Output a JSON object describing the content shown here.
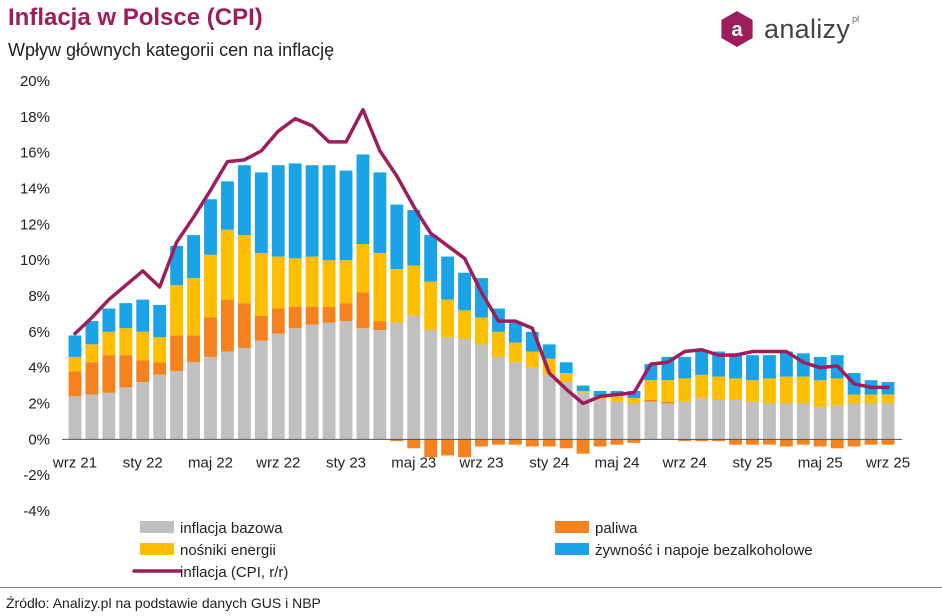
{
  "header": {
    "title": "Inflacja w Polsce (CPI)",
    "subtitle": "Wpływ głównych kategorii cen na inflację"
  },
  "brand": {
    "name": "analizy",
    "suffix": "pl",
    "logo_letter": "a",
    "color": "#9c1e5c"
  },
  "footer": {
    "source": "Źródło: Analizy.pl na podstawie danych GUS i NBP"
  },
  "chart_data": {
    "type": "bar",
    "stacked": true,
    "title": "Inflacja w Polsce (CPI)",
    "subtitle": "Wpływ głównych kategorii cen na inflację",
    "ylim": [
      -4,
      20
    ],
    "yticks": [
      -4,
      -2,
      0,
      2,
      4,
      6,
      8,
      10,
      12,
      14,
      16,
      18,
      20
    ],
    "ytick_labels": [
      "-4%",
      "-2%",
      "0%",
      "2%",
      "4%",
      "6%",
      "8%",
      "10%",
      "12%",
      "14%",
      "16%",
      "18%",
      "20%"
    ],
    "grid": false,
    "legend_position": "bottom",
    "categories": [
      "2021-09",
      "2021-10",
      "2021-11",
      "2021-12",
      "2022-01",
      "2022-02",
      "2022-03",
      "2022-04",
      "2022-05",
      "2022-06",
      "2022-07",
      "2022-08",
      "2022-09",
      "2022-10",
      "2022-11",
      "2022-12",
      "2023-01",
      "2023-02",
      "2023-03",
      "2023-04",
      "2023-05",
      "2023-06",
      "2023-07",
      "2023-08",
      "2023-09",
      "2023-10",
      "2023-11",
      "2023-12",
      "2024-01",
      "2024-02",
      "2024-03",
      "2024-04",
      "2024-05",
      "2024-06",
      "2024-07",
      "2024-08",
      "2024-09",
      "2024-10",
      "2024-11",
      "2024-12",
      "2025-01",
      "2025-02",
      "2025-03",
      "2025-04",
      "2025-05",
      "2025-06",
      "2025-07",
      "2025-08",
      "2025-09"
    ],
    "x_tick_labels": [
      {
        "index": 0,
        "label": "wrz 21"
      },
      {
        "index": 4,
        "label": "sty 22"
      },
      {
        "index": 8,
        "label": "maj 22"
      },
      {
        "index": 12,
        "label": "wrz 22"
      },
      {
        "index": 16,
        "label": "sty 23"
      },
      {
        "index": 20,
        "label": "maj 23"
      },
      {
        "index": 24,
        "label": "wrz 23"
      },
      {
        "index": 28,
        "label": "sty 24"
      },
      {
        "index": 32,
        "label": "maj 24"
      },
      {
        "index": 36,
        "label": "wrz 24"
      },
      {
        "index": 40,
        "label": "sty 25"
      },
      {
        "index": 44,
        "label": "maj 25"
      },
      {
        "index": 48,
        "label": "wrz 25"
      }
    ],
    "series": [
      {
        "name": "inflacja bazowa",
        "color": "#c0c0c0",
        "kind": "bar",
        "values": [
          2.4,
          2.5,
          2.6,
          2.9,
          3.2,
          3.6,
          3.8,
          4.3,
          4.6,
          4.9,
          5.1,
          5.5,
          5.9,
          6.2,
          6.4,
          6.5,
          6.6,
          6.2,
          6.1,
          6.5,
          6.9,
          6.1,
          5.7,
          5.6,
          5.3,
          4.6,
          4.3,
          4.0,
          3.6,
          3.2,
          2.6,
          2.2,
          2.1,
          2.0,
          2.1,
          2.0,
          2.1,
          2.3,
          2.2,
          2.2,
          2.1,
          2.0,
          2.0,
          2.0,
          1.8,
          1.9,
          2.0,
          2.0,
          2.0
        ]
      },
      {
        "name": "paliwa",
        "color": "#f5821f",
        "kind": "bar",
        "values": [
          1.4,
          1.8,
          2.1,
          1.8,
          1.2,
          0.7,
          2.0,
          1.5,
          2.2,
          2.9,
          2.5,
          1.4,
          1.4,
          1.2,
          1.0,
          0.9,
          1.0,
          2.0,
          0.5,
          -0.1,
          -0.5,
          -1.0,
          -0.9,
          -1.0,
          -0.4,
          -0.3,
          -0.3,
          -0.4,
          -0.4,
          -0.5,
          -0.8,
          -0.4,
          -0.3,
          -0.2,
          0.1,
          0.1,
          -0.1,
          -0.1,
          -0.1,
          -0.3,
          -0.3,
          -0.3,
          -0.4,
          -0.3,
          -0.4,
          -0.5,
          -0.4,
          -0.3,
          -0.3
        ]
      },
      {
        "name": "nośniki energii",
        "color": "#ffbe00",
        "kind": "bar",
        "values": [
          0.8,
          1.0,
          1.3,
          1.5,
          1.6,
          1.4,
          2.8,
          3.2,
          3.5,
          3.9,
          3.8,
          3.5,
          2.9,
          2.7,
          2.8,
          2.6,
          2.4,
          2.7,
          3.8,
          3.0,
          2.8,
          2.7,
          2.1,
          1.6,
          1.5,
          1.4,
          1.1,
          0.9,
          0.9,
          0.5,
          0.1,
          0.2,
          0.3,
          0.3,
          1.1,
          1.2,
          1.3,
          1.3,
          1.3,
          1.2,
          1.2,
          1.4,
          1.5,
          1.5,
          1.5,
          1.5,
          0.5,
          0.5,
          0.5
        ]
      },
      {
        "name": "żywność i napoje bezalkoholowe",
        "color": "#1ba3e8",
        "kind": "bar",
        "values": [
          1.2,
          1.3,
          1.3,
          1.4,
          1.8,
          1.8,
          2.2,
          2.4,
          3.1,
          2.7,
          3.9,
          4.5,
          5.1,
          5.3,
          5.1,
          5.3,
          5.0,
          5.0,
          4.5,
          3.6,
          3.1,
          2.6,
          2.4,
          2.1,
          2.2,
          1.3,
          1.1,
          1.1,
          0.8,
          0.6,
          0.3,
          0.3,
          0.3,
          0.4,
          0.9,
          1.3,
          1.2,
          1.4,
          1.4,
          1.4,
          1.4,
          1.3,
          1.4,
          1.3,
          1.3,
          1.3,
          1.2,
          0.8,
          0.7
        ]
      },
      {
        "name": "inflacja (CPI, r/r)",
        "color": "#9c1e5c",
        "kind": "line",
        "values": [
          5.9,
          6.8,
          7.8,
          8.6,
          9.4,
          8.5,
          11.0,
          12.4,
          13.9,
          15.5,
          15.6,
          16.1,
          17.2,
          17.9,
          17.5,
          16.6,
          16.6,
          18.4,
          16.1,
          14.7,
          13.0,
          11.5,
          10.8,
          10.1,
          8.2,
          6.6,
          6.6,
          6.2,
          3.7,
          2.8,
          2.0,
          2.4,
          2.5,
          2.6,
          4.2,
          4.3,
          4.9,
          5.0,
          4.7,
          4.7,
          4.9,
          4.9,
          4.9,
          4.3,
          4.0,
          4.1,
          3.1,
          2.9,
          2.9
        ]
      }
    ]
  }
}
